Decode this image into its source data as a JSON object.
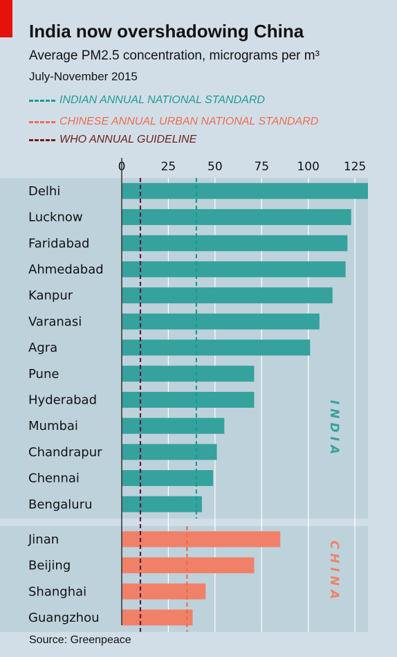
{
  "header": {
    "title": "India now overshadowing China",
    "subtitle": "Average PM2.5 concentration, micrograms per m³",
    "dates": "July-November 2015"
  },
  "legend": [
    {
      "label": "INDIAN ANNUAL NATIONAL STANDARD",
      "color": "#1d9a94"
    },
    {
      "label": "CHINESE ANNUAL URBAN NATIONAL STANDARD",
      "color": "#eb6e52"
    },
    {
      "label": "WHO ANNUAL GUIDELINE",
      "color": "#6a1f1a"
    }
  ],
  "source": "Source: Greenpeace",
  "colors": {
    "india_bar": "#35a29d",
    "china_bar": "#f08168",
    "indian_standard": "#1d9a94",
    "chinese_standard": "#eb6e52",
    "who_guideline": "#5c1c3c",
    "panel": "#bed2dc",
    "background": "#d2dee7"
  },
  "chart_data": {
    "type": "bar",
    "orientation": "horizontal",
    "xlim": [
      0,
      132
    ],
    "ticks": [
      0,
      25,
      50,
      75,
      100,
      125
    ],
    "tick_labels": [
      "0",
      "25",
      "50",
      "75",
      "100",
      "125"
    ],
    "groups": [
      {
        "name": "INDIA",
        "color": "#35a29d",
        "categories": [
          "Delhi",
          "Lucknow",
          "Faridabad",
          "Ahmedabad",
          "Kanpur",
          "Varanasi",
          "Agra",
          "Pune",
          "Hyderabad",
          "Mumbai",
          "Chandrapur",
          "Chennai",
          "Bengaluru"
        ],
        "values": [
          132,
          123,
          121,
          120,
          113,
          106,
          101,
          71,
          71,
          55,
          51,
          49,
          43
        ]
      },
      {
        "name": "CHINA",
        "color": "#f08168",
        "categories": [
          "Jinan",
          "Beijing",
          "Shanghai",
          "Guangzhou"
        ],
        "values": [
          85,
          71,
          45,
          38
        ]
      }
    ],
    "reference_lines": [
      {
        "label": "INDIAN ANNUAL NATIONAL STANDARD",
        "value": 40,
        "applies_to": "INDIA",
        "color": "#1d9a94"
      },
      {
        "label": "CHINESE ANNUAL URBAN NATIONAL STANDARD",
        "value": 35,
        "applies_to": "CHINA",
        "color": "#eb6e52"
      },
      {
        "label": "WHO ANNUAL GUIDELINE",
        "value": 10,
        "applies_to": "ALL",
        "color": "#5c1c3c"
      }
    ]
  }
}
